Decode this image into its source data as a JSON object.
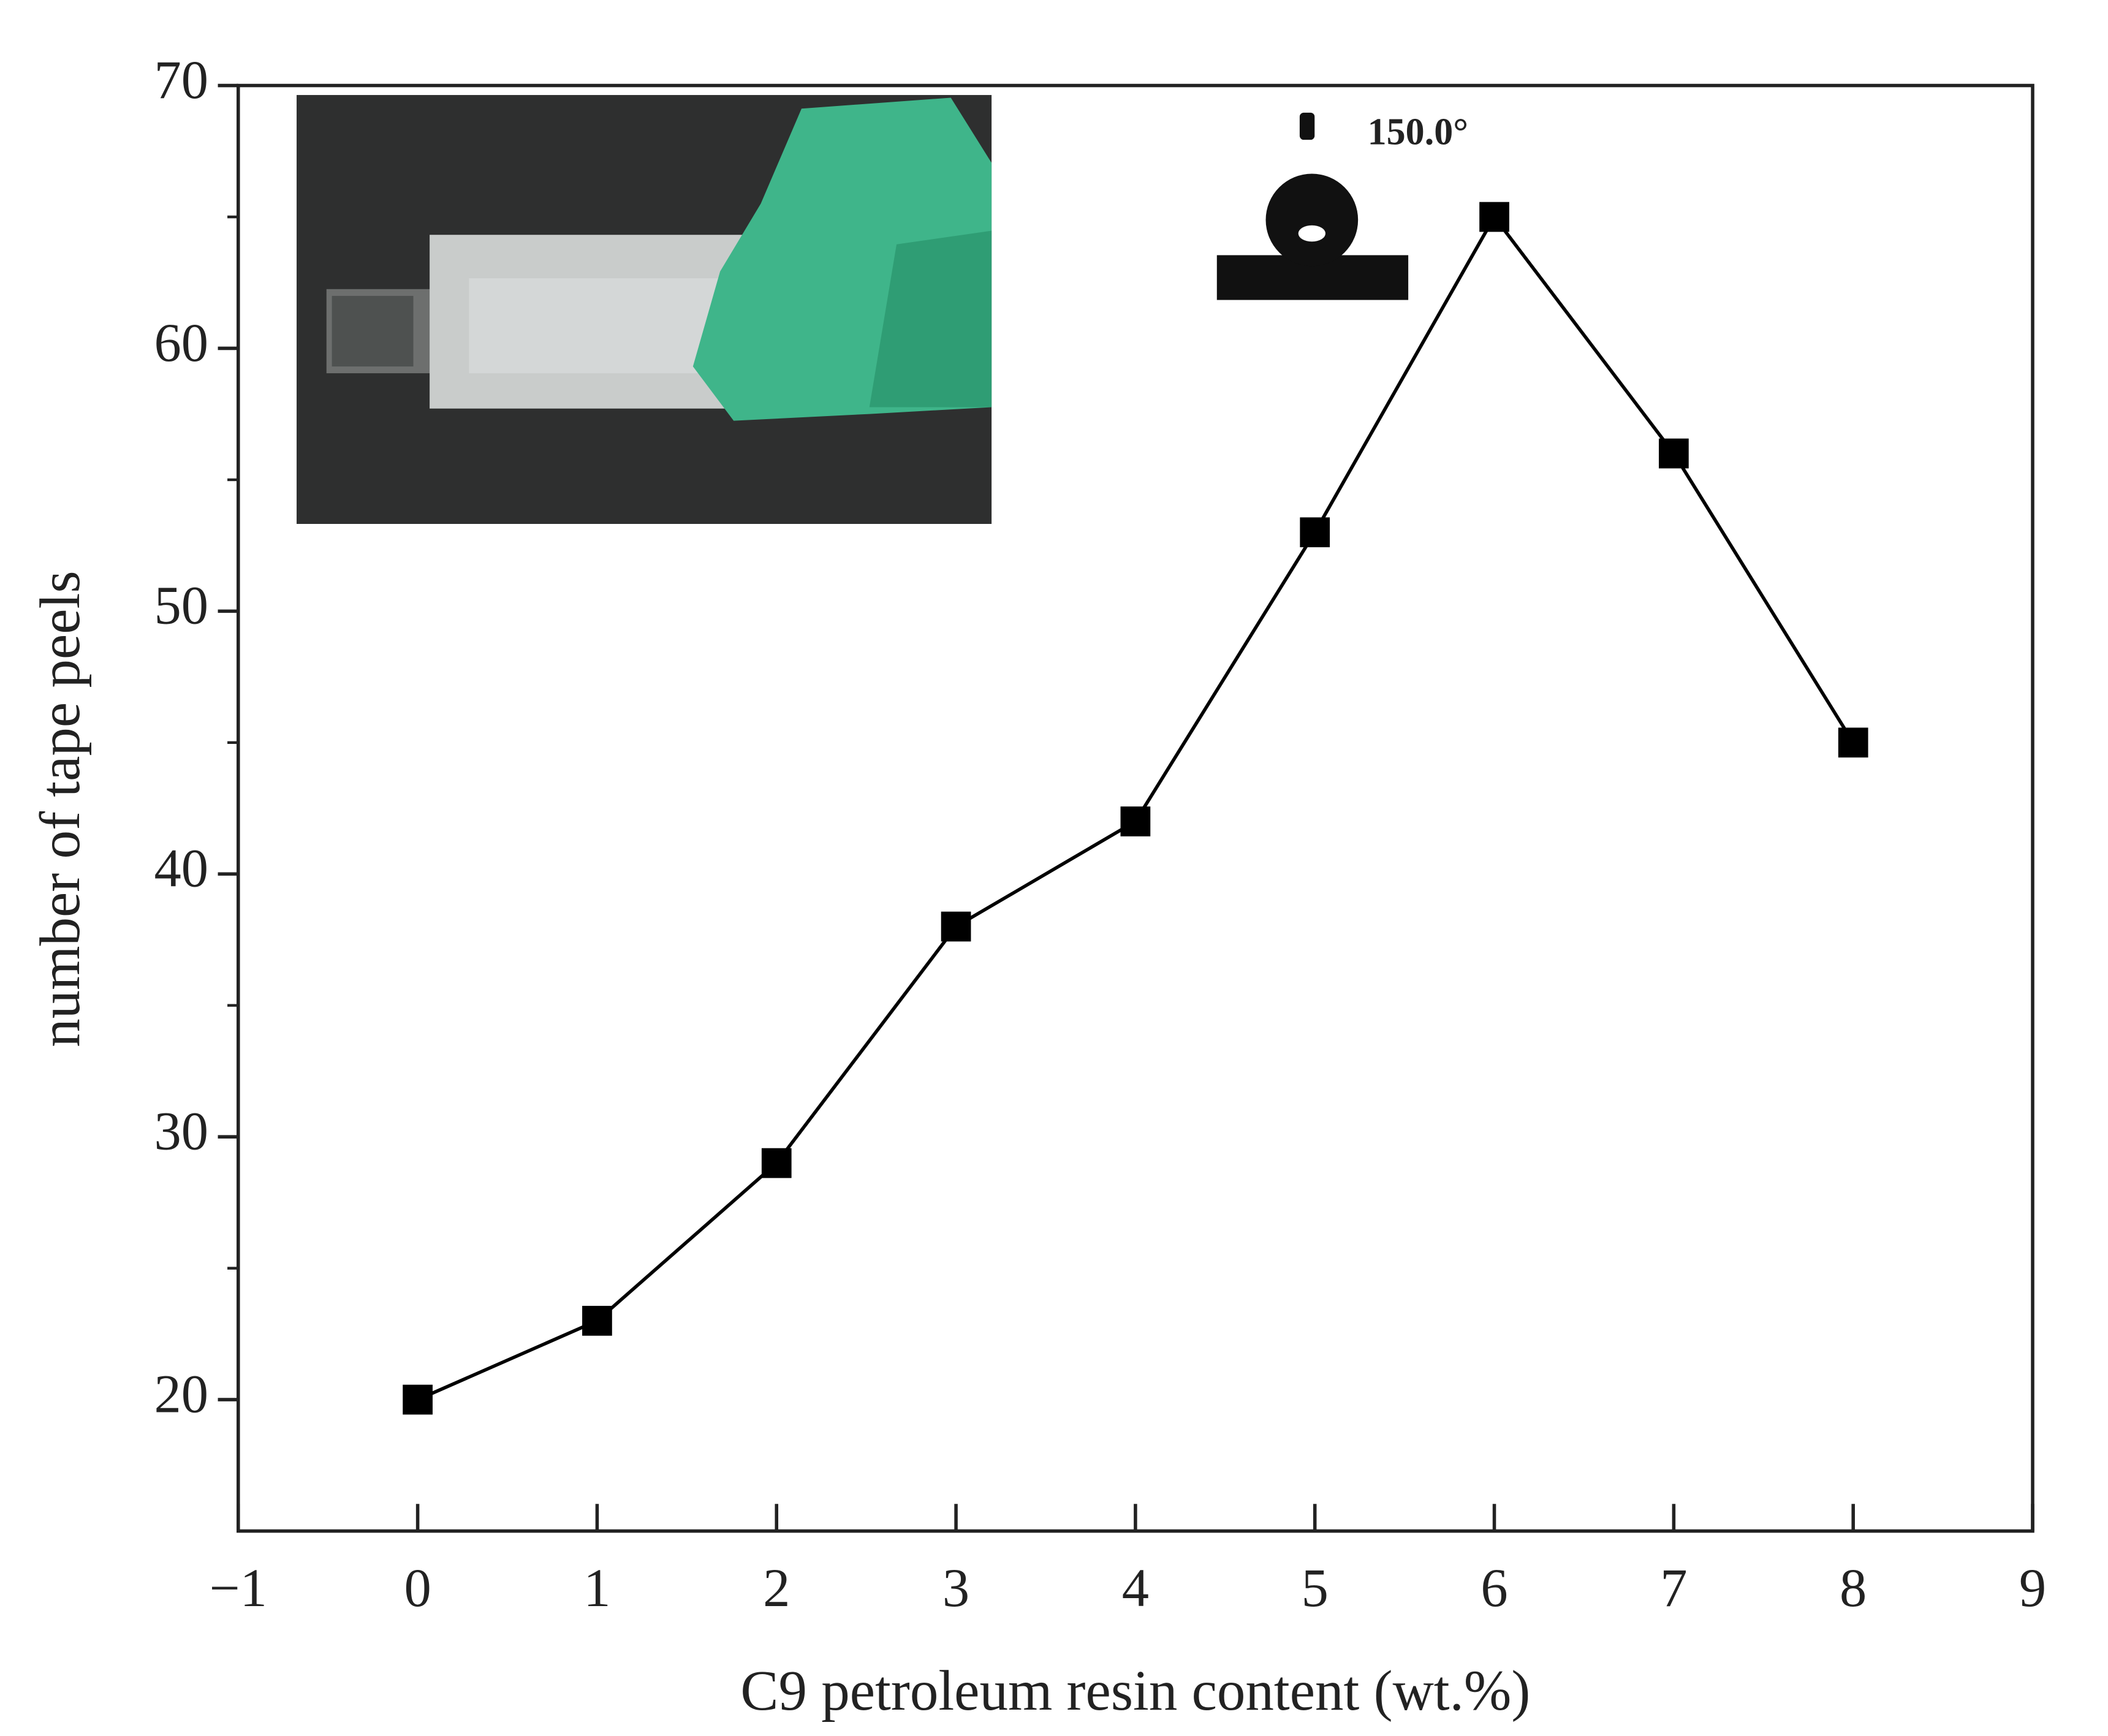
{
  "chart_data": {
    "type": "line",
    "x_label": "C9 petroleum resin content (wt.%)",
    "y_label": "number of tape peels",
    "annotation": "150.0°",
    "x": [
      0,
      1,
      2,
      3,
      4,
      5,
      6,
      7,
      8
    ],
    "values": [
      20,
      23,
      29,
      38,
      42,
      53,
      65,
      56,
      45
    ],
    "color": "#000000",
    "marker": "square",
    "xlim": [
      -1,
      9
    ],
    "xticks": [
      {
        "value": -1,
        "label": "−1"
      },
      0,
      1,
      2,
      3,
      4,
      5,
      6,
      7,
      8,
      9
    ],
    "ylim": [
      15,
      70
    ],
    "yticks": [
      20,
      30,
      40,
      50,
      60,
      70
    ],
    "yminorticks": [
      25,
      35,
      45,
      55,
      65
    ],
    "grid": false
  }
}
